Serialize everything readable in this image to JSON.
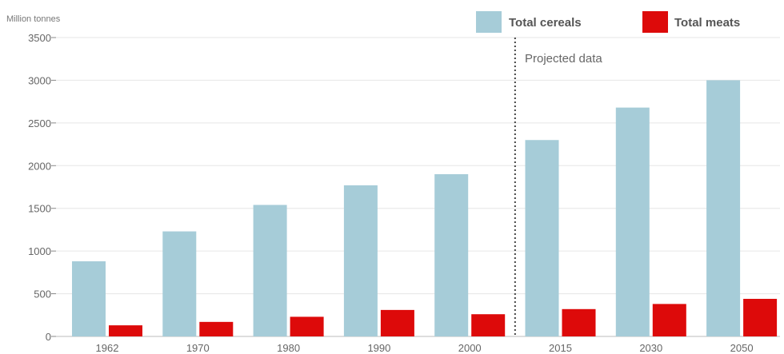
{
  "chart_data": {
    "type": "bar",
    "ylabel": "Million tonnes",
    "ylim": [
      0,
      3500
    ],
    "y_ticks": [
      0,
      500,
      1000,
      1500,
      2000,
      2500,
      3000,
      3500
    ],
    "grid": true,
    "legend_position": "top-right",
    "categories": [
      "1962",
      "1970",
      "1980",
      "1990",
      "2000",
      "2015",
      "2030",
      "2050"
    ],
    "series": [
      {
        "name": "Total cereals",
        "color": "#a6ccd8",
        "values": [
          880,
          1230,
          1540,
          1770,
          1900,
          2300,
          2680,
          3000
        ]
      },
      {
        "name": "Total meats",
        "color": "#dd0a0a",
        "values": [
          130,
          170,
          230,
          310,
          260,
          320,
          380,
          440
        ]
      }
    ],
    "annotation": {
      "text": "Projected data",
      "divider_after_category": "2000"
    }
  }
}
